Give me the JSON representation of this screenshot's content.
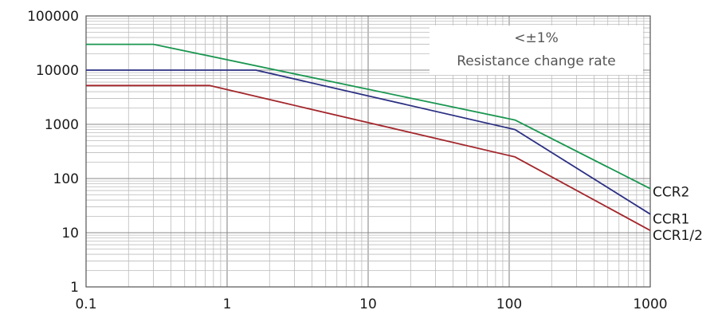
{
  "chart_data": {
    "type": "line",
    "x_scale": "log",
    "y_scale": "log",
    "xlim": [
      0.1,
      1000
    ],
    "ylim": [
      1,
      100000
    ],
    "x_ticks": [
      "0.1",
      "1",
      "10",
      "100",
      "1000"
    ],
    "y_ticks": [
      "100000",
      "10000",
      "1000",
      "100",
      "10",
      "1"
    ],
    "grid": true,
    "annotation": {
      "line1": "<±1%",
      "line2": "Resistance change rate"
    },
    "series": [
      {
        "name": "CCR2",
        "color": "#1a9650",
        "points": [
          [
            0.1,
            30000
          ],
          [
            0.3,
            30000
          ],
          [
            110,
            1200
          ],
          [
            1000,
            65
          ]
        ]
      },
      {
        "name": "CCR1",
        "color": "#2b2f82",
        "points": [
          [
            0.1,
            10000
          ],
          [
            1.6,
            10000
          ],
          [
            110,
            800
          ],
          [
            1000,
            22
          ]
        ]
      },
      {
        "name": "CCR1/2",
        "color": "#a3262b",
        "points": [
          [
            0.1,
            5200
          ],
          [
            0.75,
            5200
          ],
          [
            110,
            250
          ],
          [
            1000,
            11
          ]
        ]
      }
    ]
  }
}
